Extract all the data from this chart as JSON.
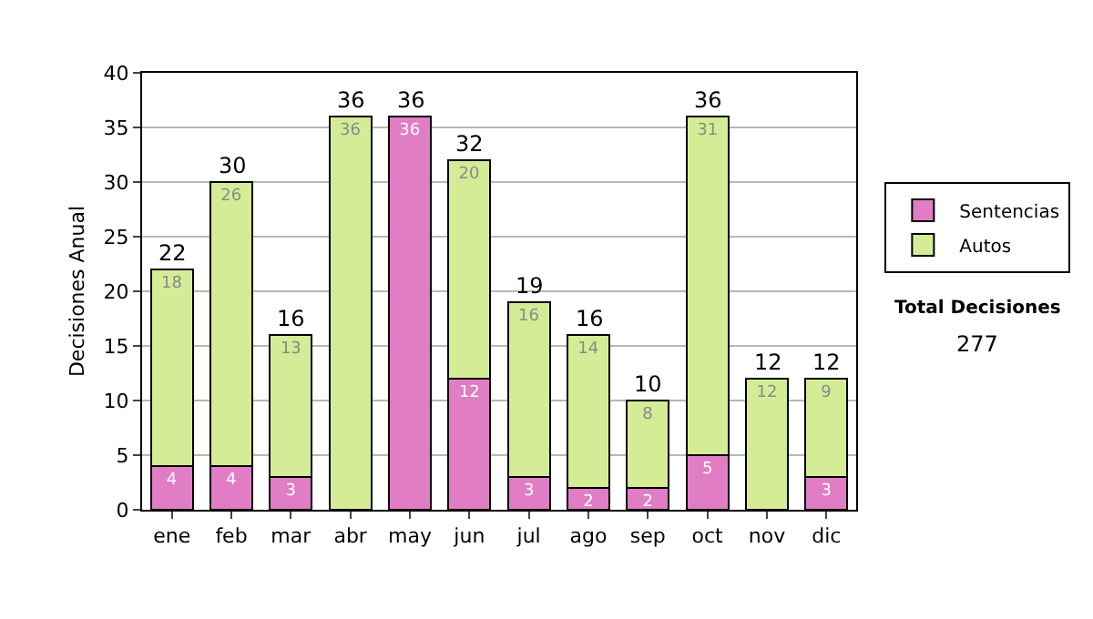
{
  "chart_data": {
    "type": "bar",
    "stacked": true,
    "ylabel": "Decisiones Anual",
    "categories": [
      "ene",
      "feb",
      "mar",
      "abr",
      "may",
      "jun",
      "jul",
      "ago",
      "sep",
      "oct",
      "nov",
      "dic"
    ],
    "series": [
      {
        "name": "Sentencias",
        "color": "#e07dc4",
        "values": [
          4,
          4,
          3,
          0,
          36,
          12,
          3,
          2,
          2,
          5,
          0,
          3
        ],
        "value_labels": [
          "4",
          "4",
          "3",
          null,
          "36",
          "12",
          "3",
          "2",
          "2",
          "5",
          null,
          "3"
        ]
      },
      {
        "name": "Autos",
        "color": "#d4ec96",
        "values": [
          18,
          26,
          13,
          36,
          0,
          20,
          16,
          14,
          8,
          31,
          12,
          9
        ],
        "value_labels": [
          "18",
          "26",
          "13",
          "36",
          null,
          "20",
          "16",
          "14",
          "8",
          "31",
          "12",
          "9"
        ]
      }
    ],
    "totals": [
      "22",
      "30",
      "16",
      "36",
      "36",
      "32",
      "19",
      "16",
      "10",
      "36",
      "12",
      "12"
    ],
    "ylim": [
      0,
      40
    ],
    "yticks": [
      0,
      5,
      10,
      15,
      20,
      25,
      30,
      35,
      40
    ],
    "grid": "y",
    "legend": "right",
    "annotations": [
      "Total Decisiones",
      "277"
    ]
  }
}
